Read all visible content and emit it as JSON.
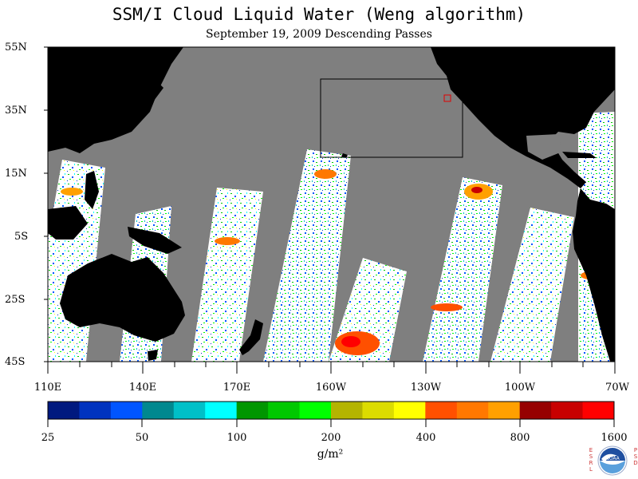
{
  "header": {
    "title": "SSM/I Cloud Liquid Water (Weng algorithm)",
    "subtitle": "September 19, 2009  Descending Passes"
  },
  "map": {
    "lat_labels": [
      "55N",
      "35N",
      "15N",
      "5S",
      "25S",
      "45S"
    ],
    "lon_labels": [
      "110E",
      "140E",
      "170E",
      "160W",
      "130W",
      "100W",
      "70W"
    ],
    "colors": {
      "land": "#000000",
      "no_data": "#7f7f7f",
      "clear": "#ffffff",
      "highlight_box": "#e00000"
    }
  },
  "colorbar": {
    "tick_labels": [
      "25",
      "50",
      "100",
      "200",
      "400",
      "800",
      "1600"
    ],
    "units": "g/m²",
    "colors": [
      "#00197f",
      "#0033bf",
      "#0055ff",
      "#00888f",
      "#00c0c8",
      "#00ffff",
      "#009600",
      "#00c800",
      "#00ff00",
      "#b4b400",
      "#dcdc00",
      "#ffff00",
      "#ff5000",
      "#ff7800",
      "#ffa000",
      "#960000",
      "#c80000",
      "#ff0000"
    ]
  },
  "footer": {
    "left_letters": "ESRL",
    "right_letters": "PSD",
    "logo_text": "NOAA"
  }
}
